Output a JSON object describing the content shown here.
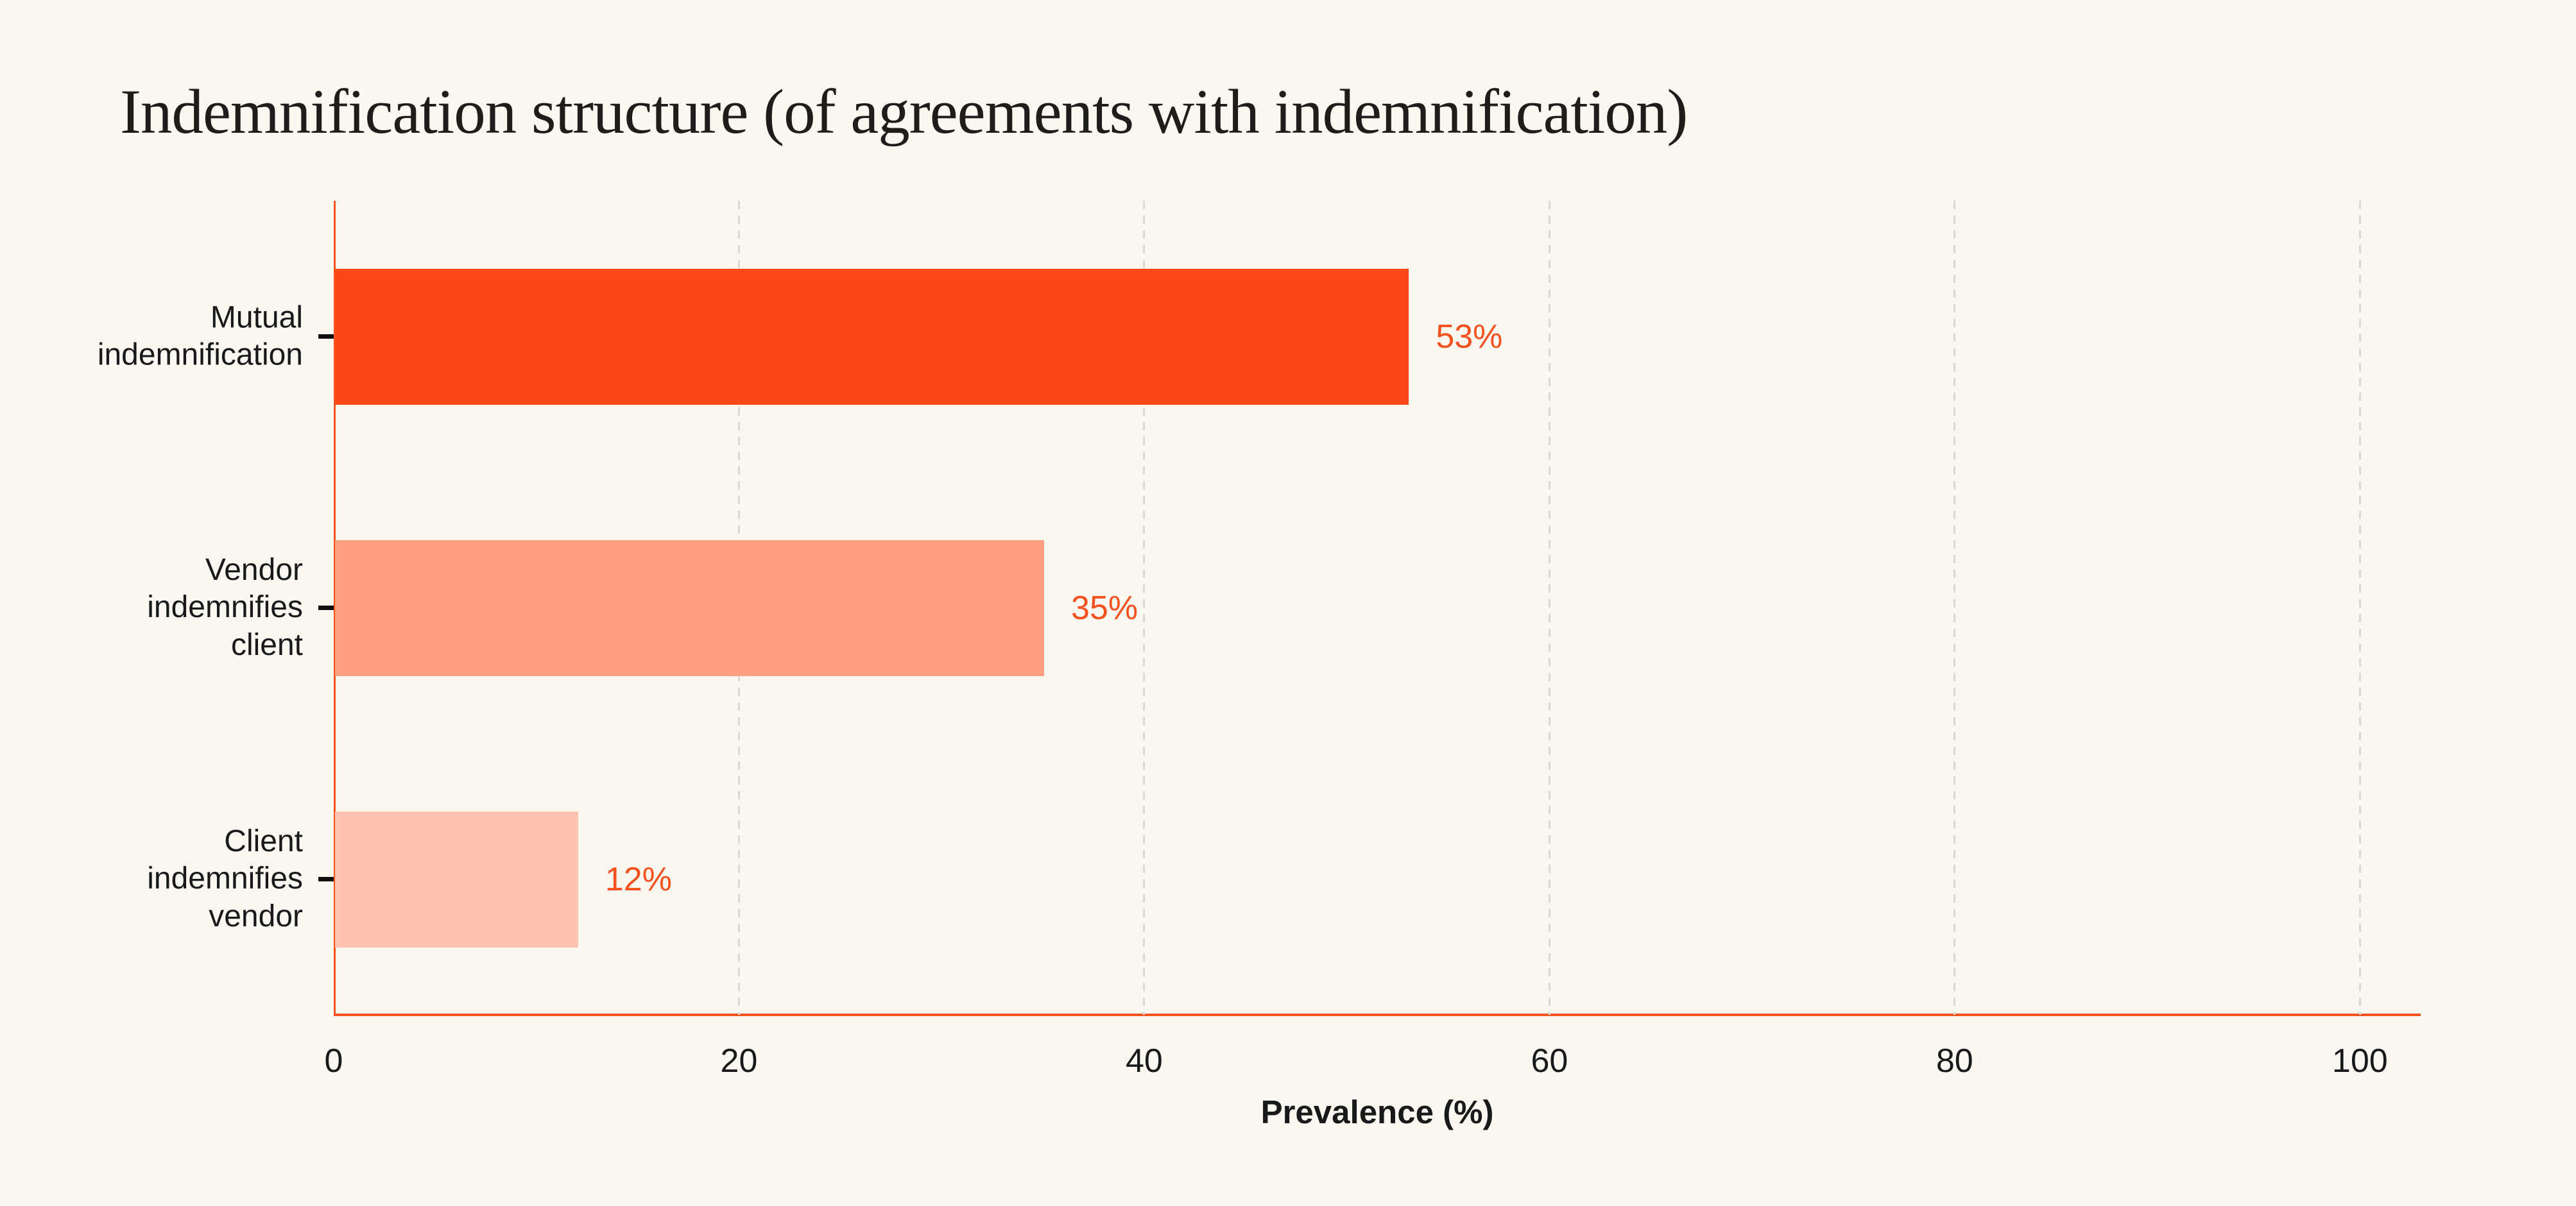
{
  "page": {
    "background_color": "#FAF7F0"
  },
  "chart_data": {
    "type": "bar",
    "orientation": "horizontal",
    "title": "Indemnification structure (of agreements with indemnification)",
    "xlabel": "Prevalence (%)",
    "xlim": [
      0,
      103
    ],
    "xticks": [
      "0",
      "20",
      "40",
      "60",
      "80",
      "100"
    ],
    "xtick_values": [
      0,
      20,
      40,
      60,
      80,
      100
    ],
    "grid": "vertical dashed gridlines at 20, 40, 60, 80, 100",
    "legend": "none",
    "categories": [
      "Mutual\nindemnification",
      "Vendor indemnifies\nclient",
      "Client indemnifies\nvendor"
    ],
    "values": [
      53,
      35,
      12
    ],
    "value_labels": [
      "53%",
      "35%",
      "12%"
    ],
    "bar_colors": [
      "#FC4816",
      "#FE9F81",
      "#FEC3B1"
    ],
    "value_label_color": "#F5511F",
    "axis_color": "#F8541F",
    "gridline_color": "#D9D8D3",
    "text_color": "#17191A",
    "title_color": "#1E1D1B"
  }
}
